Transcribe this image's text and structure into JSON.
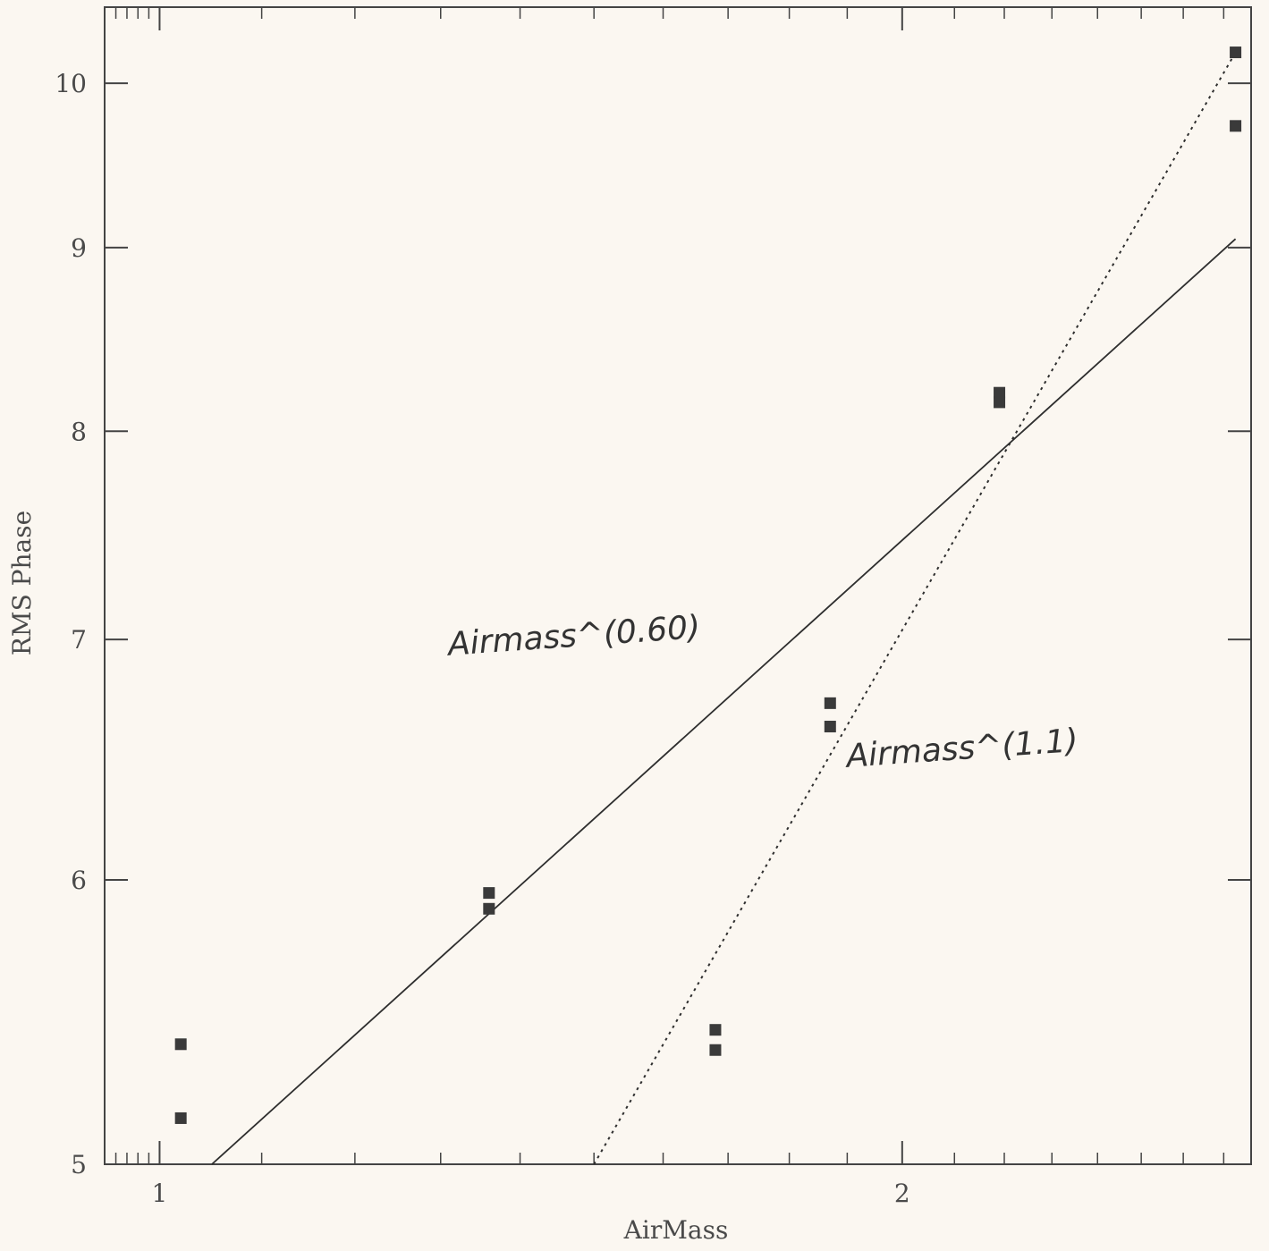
{
  "chart_data": {
    "type": "scatter",
    "xlabel": "AirMass",
    "ylabel": "RMS Phase",
    "xscale": "log",
    "yscale": "log",
    "xlim": [
      0.95,
      2.77
    ],
    "ylim": [
      5,
      10.5
    ],
    "xticks": [
      {
        "value": 1,
        "label": "1"
      },
      {
        "value": 2,
        "label": "2"
      }
    ],
    "yticks": [
      {
        "value": 5,
        "label": "5"
      },
      {
        "value": 6,
        "label": "6"
      },
      {
        "value": 7,
        "label": "7"
      },
      {
        "value": 8,
        "label": "8"
      },
      {
        "value": 9,
        "label": "9"
      },
      {
        "value": 10,
        "label": "10"
      }
    ],
    "x_minor_ticks": [
      0.96,
      0.97,
      0.98,
      0.99,
      1.1,
      1.2,
      1.3,
      1.4,
      1.5,
      1.6,
      1.7,
      1.8,
      1.9,
      2.1,
      2.2,
      2.3,
      2.4,
      2.5,
      2.6,
      2.7
    ],
    "grid": false,
    "legend": "none",
    "points": [
      {
        "x": 1.02,
        "y": 5.4
      },
      {
        "x": 1.02,
        "y": 5.15
      },
      {
        "x": 1.36,
        "y": 5.95
      },
      {
        "x": 1.36,
        "y": 5.89
      },
      {
        "x": 1.68,
        "y": 5.45
      },
      {
        "x": 1.68,
        "y": 5.38
      },
      {
        "x": 1.87,
        "y": 6.72
      },
      {
        "x": 1.87,
        "y": 6.62
      },
      {
        "x": 2.19,
        "y": 8.2
      },
      {
        "x": 2.19,
        "y": 8.15
      },
      {
        "x": 2.73,
        "y": 10.2
      },
      {
        "x": 2.73,
        "y": 9.73
      }
    ],
    "series": [
      {
        "line_style": "solid",
        "x": [
          1.05,
          2.73
        ],
        "y": [
          5.0,
          9.05
        ]
      },
      {
        "line_style": "dotted",
        "x": [
          1.5,
          2.73
        ],
        "y": [
          5.0,
          10.2
        ]
      }
    ],
    "annotations": [
      {
        "text": "Airmass^(0.60)",
        "x": 1.31,
        "y": 6.93
      },
      {
        "text": "Airmass^(1.1)",
        "x": 1.9,
        "y": 6.45
      }
    ],
    "style": {
      "marker_color": "#3a3a3a",
      "line_color": "#2e2e2e",
      "axis_color": "#444444",
      "background": "#fbf7f1"
    }
  }
}
